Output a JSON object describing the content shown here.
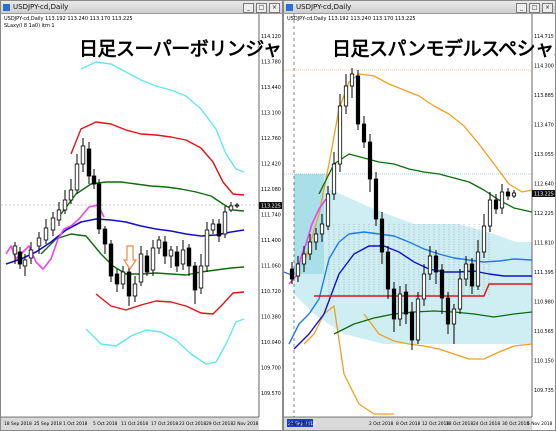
{
  "left": {
    "window_title": "USDJPY-cd,Daily",
    "info_line": "USDJPY-cd,Daily  113.192 113.240 113.170 113.225",
    "ind_line": "SLaxy(l 8 1a0) itm 1",
    "overlay_title": "日足スーパーボリンジャー",
    "price_labels": [
      "114.120",
      "113.780",
      "113.440",
      "113.100",
      "112.760",
      "112.420",
      "112.080",
      "111.740",
      "111.400",
      "111.060",
      "110.720",
      "110.380",
      "110.040",
      "109.700",
      "109.570"
    ],
    "current_price": "113.225",
    "date_labels": [
      "18 Sep 2018",
      "25 Sep 2018",
      "1 Oct 2018",
      "5 Oct 2018",
      "11 Oct 2018",
      "17 Oct 2018",
      "23 Oct 2018",
      "29 Oct 2018",
      "2 Nov 2018"
    ],
    "colors": {
      "bb_outer": "#60e8ef",
      "bb_mid": "#e01414",
      "bb_inner": "#0b6d0b",
      "sma": "#1010cc",
      "lag": "#ee44ee",
      "marker": "#ee8844"
    }
  },
  "right": {
    "window_title": "USDJPY-cd,Daily",
    "info_line": "USDJPY-cd,Daily  113.192 113.240 113.170 113.225",
    "overlay_title": "日足スパンモデルスペシャル",
    "price_labels": [
      "114.715",
      "114.300",
      "113.885",
      "113.470",
      "113.055",
      "112.640",
      "112.225",
      "111.810",
      "111.395",
      "110.980",
      "110.565",
      "110.150",
      "109.735"
    ],
    "current_price": "113.225",
    "date_labels": [
      "Sep 2018",
      "21 Sep 2018",
      "2 Oct 2018",
      "8 Oct 2018",
      "12 Oct 2018",
      "18 Oct 2018",
      "24 Oct 2018",
      "30 Oct 2018",
      "5 Nov 2018"
    ],
    "date_highlight": "21 Sep 2018",
    "colors": {
      "env_outer": "#f0a020",
      "env_inner": "#0b6d0b",
      "blue": "#1a7cf0",
      "red": "#e01414",
      "blue2": "#1010cc",
      "magenta": "#ee44ee"
    }
  }
}
